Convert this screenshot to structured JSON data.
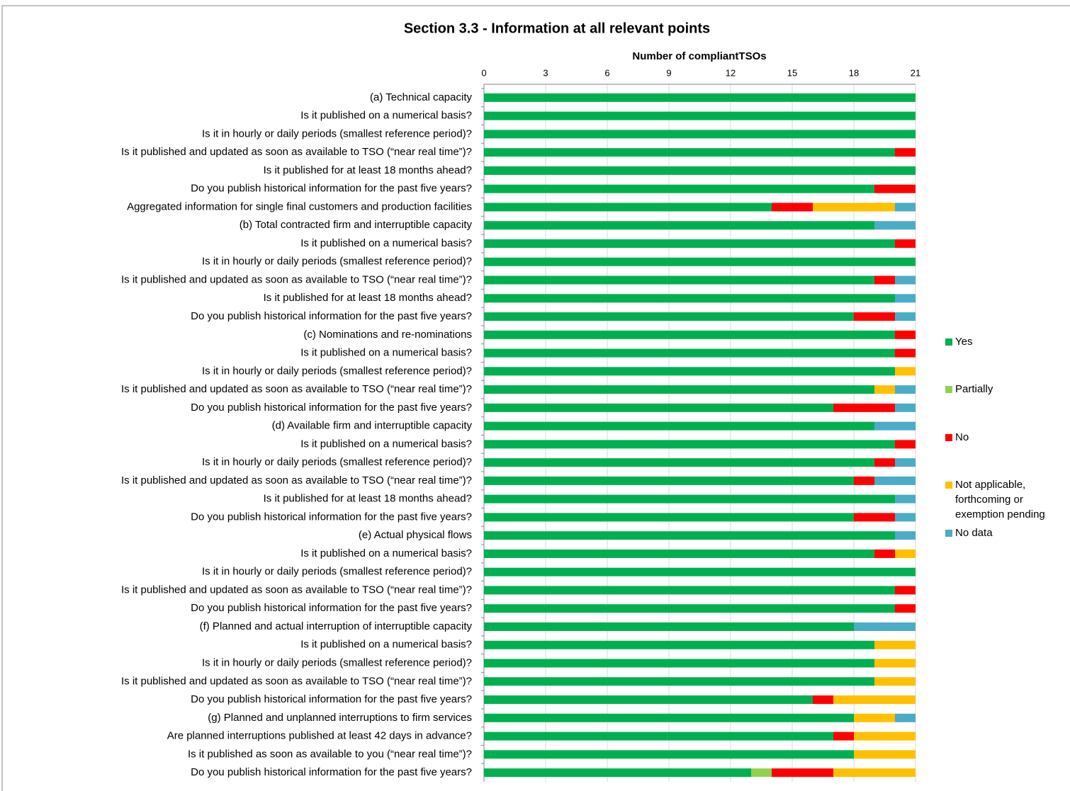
{
  "chart_data": {
    "type": "stacked-barh",
    "title": "Section 3.3 - Information at all relevant points",
    "x_label": "Number of compliantTSOs",
    "xlim": [
      0,
      21
    ],
    "xticks": [
      0,
      3,
      6,
      9,
      12,
      15,
      18,
      21
    ],
    "grid": true,
    "legend": "right",
    "categories": [
      "(a) Technical capacity",
      "Is it published on a numerical basis?",
      "Is it in hourly or daily periods (smallest reference period)?",
      "Is it published and updated as soon as available to TSO (“near real time”)?",
      "Is it published for at least 18 months ahead?",
      "Do you publish historical information for the past five years?",
      "Aggregated information for single final customers and production facilities",
      "(b) Total contracted firm and interruptible capacity",
      "Is it published on a numerical basis?",
      "Is it in hourly or daily periods (smallest reference period)?",
      "Is it published and updated as soon as available to TSO (“near real time”)?",
      "Is it published for at least 18 months ahead?",
      "Do you publish historical information for the past five years?",
      "(c) Nominations and re-nominations",
      "Is it published on a numerical basis?",
      "Is it in hourly or daily periods (smallest reference period)?",
      "Is it published and updated as soon as available to TSO (“near real time”)?",
      "Do you publish historical information for the past five years?",
      "(d) Available firm and interruptible capacity",
      "Is it published on a numerical basis?",
      "Is it in hourly or daily periods (smallest reference period)?",
      "Is it published and updated as soon as available to TSO (“near real time”)?",
      "Is it published for at least 18 months ahead?",
      "Do you publish historical information for the past five years?",
      "(e) Actual physical flows",
      "Is it published on a numerical basis?",
      "Is it in hourly or daily periods (smallest reference period)?",
      "Is it published and updated as soon as available to TSO (“near real time”)?",
      "Do you publish historical information for the past five years?",
      "(f) Planned and actual interruption of interruptible capacity",
      "Is it published on a numerical basis?",
      "Is it in hourly or daily periods (smallest reference period)?",
      "Is it published and updated as soon as available to TSO (“near real time”)?",
      "Do you publish historical information for the past five years?",
      "(g) Planned and unplanned interruptions to firm services",
      "Are planned interruptions published at least 42 days in advance?",
      "Is it published as soon as available to you (“near real time”)?",
      "Do you publish historical information for the past five years?"
    ],
    "series": [
      {
        "name": "Yes",
        "color": "#00b050",
        "values": [
          21,
          21,
          21,
          20,
          21,
          19,
          14,
          19,
          20,
          21,
          19,
          20,
          18,
          20,
          20,
          20,
          19,
          17,
          19,
          20,
          19,
          18,
          20,
          18,
          20,
          19,
          21,
          20,
          20,
          18,
          19,
          19,
          19,
          16,
          18,
          17,
          18,
          13
        ]
      },
      {
        "name": "Partially",
        "color": "#92d050",
        "values": [
          0,
          0,
          0,
          0,
          0,
          0,
          0,
          0,
          0,
          0,
          0,
          0,
          0,
          0,
          0,
          0,
          0,
          0,
          0,
          0,
          0,
          0,
          0,
          0,
          0,
          0,
          0,
          0,
          0,
          0,
          0,
          0,
          0,
          0,
          0,
          0,
          0,
          1
        ]
      },
      {
        "name": "No",
        "color": "#ff0000",
        "values": [
          0,
          0,
          0,
          1,
          0,
          2,
          2,
          0,
          1,
          0,
          1,
          0,
          2,
          1,
          1,
          0,
          0,
          3,
          0,
          1,
          1,
          1,
          0,
          2,
          0,
          1,
          0,
          1,
          1,
          0,
          0,
          0,
          0,
          1,
          0,
          1,
          0,
          3
        ]
      },
      {
        "name": "Not applicable, forthcoming or exemption pending",
        "color": "#ffc000",
        "values": [
          0,
          0,
          0,
          0,
          0,
          0,
          4,
          0,
          0,
          0,
          0,
          0,
          0,
          0,
          0,
          1,
          1,
          0,
          0,
          0,
          0,
          0,
          0,
          0,
          0,
          1,
          0,
          0,
          0,
          0,
          2,
          2,
          2,
          4,
          2,
          3,
          3,
          4
        ]
      },
      {
        "name": "No data",
        "color": "#4bacc6",
        "values": [
          0,
          0,
          0,
          0,
          0,
          0,
          1,
          2,
          0,
          0,
          1,
          1,
          1,
          0,
          0,
          0,
          1,
          1,
          2,
          0,
          1,
          2,
          1,
          1,
          1,
          0,
          0,
          0,
          0,
          3,
          0,
          0,
          0,
          0,
          1,
          0,
          0,
          0
        ]
      }
    ]
  }
}
